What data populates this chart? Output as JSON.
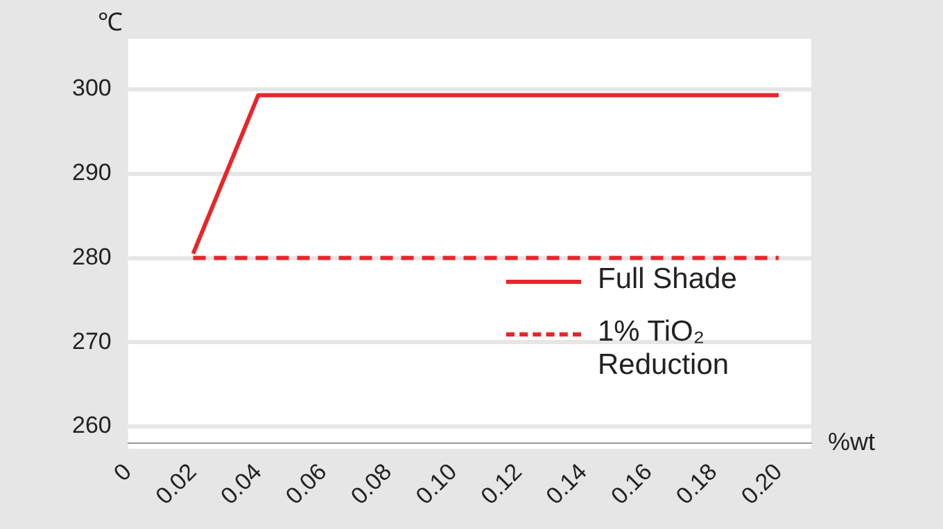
{
  "chart_data": {
    "type": "line",
    "xlabel": "%wt",
    "ylabel": "℃",
    "series": [
      {
        "name": "Full Shade",
        "color": "#e8262a",
        "line_style": "solid",
        "x": [
          0.02,
          0.04,
          0.2
        ],
        "values": [
          280.5,
          299.3,
          299.3
        ]
      },
      {
        "name": "1% TiO₂ Reduction",
        "color": "#e8262a",
        "line_style": "dashed",
        "x": [
          0.02,
          0.2
        ],
        "values": [
          280,
          280
        ]
      }
    ],
    "xlim": [
      0,
      0.21
    ],
    "xticks": [
      {
        "value": 0,
        "label": "0"
      },
      0.02,
      0.04,
      0.06,
      0.08,
      {
        "value": 0.1,
        "label": "0.10"
      },
      0.12,
      0.14,
      0.16,
      0.18,
      {
        "value": 0.2,
        "label": "0.20"
      }
    ],
    "ylim": [
      258,
      306
    ],
    "yticks": [
      260,
      270,
      280,
      290,
      300
    ],
    "grid": "y",
    "legend": "bottom right",
    "marker": "none"
  }
}
